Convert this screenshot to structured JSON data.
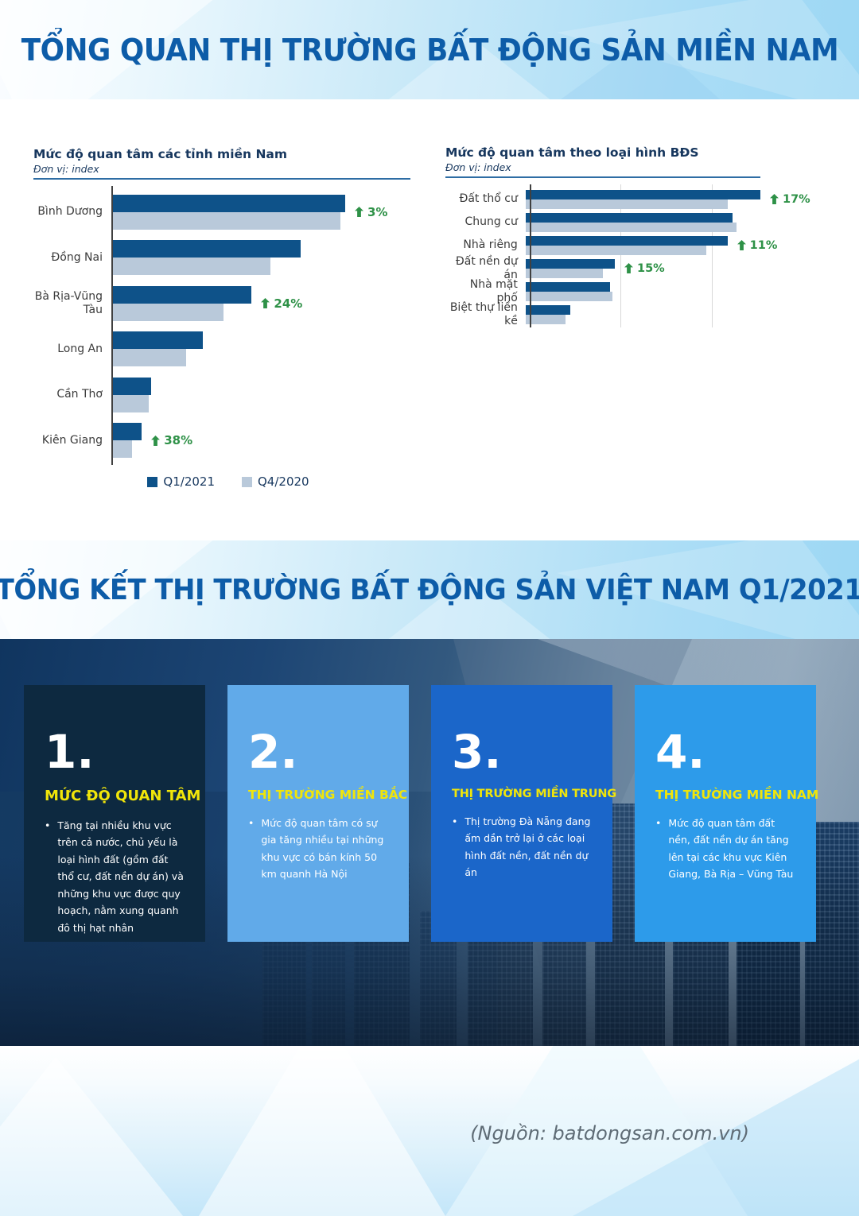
{
  "sections": [
    {
      "title": "TỔNG QUAN THỊ TRƯỜNG BẤT ĐỘNG SẢN MIỀN NAM"
    },
    {
      "title": "TỔNG KẾT THỊ TRƯỜNG BẤT ĐỘNG SẢN VIỆT NAM Q1/2021"
    }
  ],
  "source_note": "(Nguồn: batdongsan.com.vn)",
  "colors": {
    "q1_2021": "#0e5289",
    "q4_2020": "#b9c9da",
    "growth_green": "#2e9147",
    "title_blue": "#0d5ca8",
    "chart_heading_blue": "#17375e",
    "card_heading_yellow": "#f0e50a",
    "card_backgrounds": [
      "#0d2940",
      "#61aae9",
      "#1b66c9",
      "#2d9bea"
    ]
  },
  "chart_data": [
    {
      "type": "bar",
      "orientation": "horizontal",
      "title": "Mức độ quan tâm các tỉnh miền Nam",
      "unit_label": "Đơn vị: index",
      "categories": [
        "Bình Dương",
        "Đồng Nai",
        "Bà Rịa-Vũng Tàu",
        "Long An",
        "Cần Thơ",
        "Kiên Giang"
      ],
      "series": [
        {
          "name": "Q1/2021",
          "values": [
            100,
            81,
            60,
            39,
            17,
            13
          ]
        },
        {
          "name": "Q4/2020",
          "values": [
            98,
            68,
            48,
            32,
            16,
            9
          ]
        }
      ],
      "annotations": [
        {
          "category": "Bình Dương",
          "change": "3%",
          "direction": "up"
        },
        {
          "category": "Bà Rịa-Vũng Tàu",
          "change": "24%",
          "direction": "up"
        },
        {
          "category": "Kiên Giang",
          "change": "38%",
          "direction": "up"
        }
      ],
      "xlim": [
        0,
        100
      ],
      "grid": false,
      "legend_position": "bottom"
    },
    {
      "type": "bar",
      "orientation": "horizontal",
      "title": "Mức độ quan tâm theo loại hình BĐS",
      "unit_label": "Đơn vị: index",
      "categories": [
        "Đất thổ cư",
        "Chung cư",
        "Nhà riêng",
        "Đất nền dự án",
        "Nhà mặt phố",
        "Biệt thự liền kề"
      ],
      "series": [
        {
          "name": "Q1/2021",
          "values": [
            100,
            88,
            86,
            38,
            36,
            19
          ]
        },
        {
          "name": "Q4/2020",
          "values": [
            86,
            90,
            77,
            33,
            37,
            17
          ]
        }
      ],
      "annotations": [
        {
          "category": "Đất thổ cư",
          "change": "17%",
          "direction": "up"
        },
        {
          "category": "Nhà riêng",
          "change": "11%",
          "direction": "up"
        },
        {
          "category": "Đất nền dự án",
          "change": "15%",
          "direction": "up"
        }
      ],
      "xlim": [
        0,
        100
      ],
      "grid": true,
      "legend_position": "none"
    }
  ],
  "cards": [
    {
      "number": "1.",
      "heading": "MỨC ĐỘ QUAN TÂM",
      "bullets": [
        "Tăng tại nhiều khu vực trên cả nước, chủ yếu là loại hình đất (gồm đất thổ cư, đất nền dự án) và những khu vực được quy hoạch, nằm xung quanh đô thị hạt nhân"
      ]
    },
    {
      "number": "2.",
      "heading": "THỊ TRƯỜNG MIỀN BẮC",
      "bullets": [
        "Mức độ quan tâm có sự gia tăng nhiều tại những khu vực có bán kính 50 km quanh Hà Nội"
      ]
    },
    {
      "number": "3.",
      "heading": "THỊ TRƯỜNG MIỀN TRUNG",
      "bullets": [
        "Thị trường Đà Nẵng đang ấm dần trở lại ở các loại hình đất nền, đất nền dự án"
      ]
    },
    {
      "number": "4.",
      "heading": "THỊ TRƯỜNG MIỀN NAM",
      "bullets": [
        "Mức độ quan tâm đất nền, đất nền dự án tăng lên tại các khu vực Kiên Giang, Bà Rịa – Vũng Tàu"
      ]
    }
  ]
}
